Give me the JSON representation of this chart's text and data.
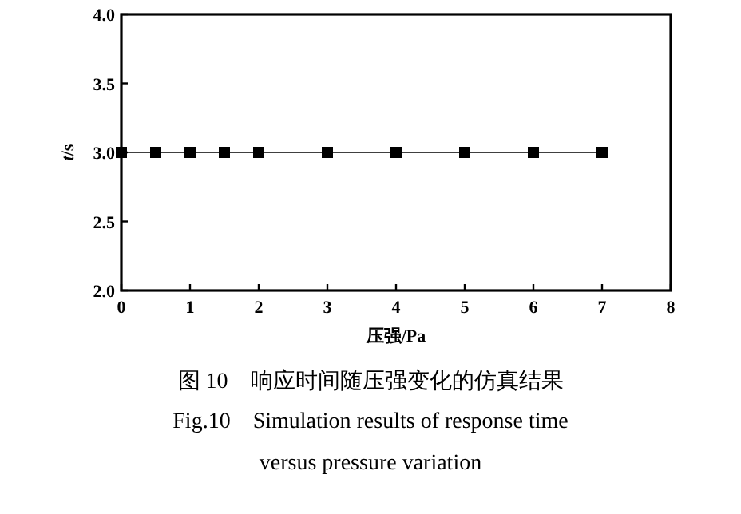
{
  "chart_data": {
    "type": "line",
    "xlabel": "压强/Pa",
    "ylabel": "*t*/s",
    "x": [
      0,
      0.5,
      1,
      1.5,
      2,
      3,
      4,
      5,
      6,
      7
    ],
    "series": [
      {
        "color": "#000000",
        "values": [
          3.0,
          3.0,
          3.0,
          3.0,
          3.0,
          3.0,
          3.0,
          3.0,
          3.0,
          3.0
        ]
      }
    ],
    "xlim": [
      0,
      8
    ],
    "xticks": [
      0,
      1,
      2,
      3,
      4,
      5,
      6,
      7,
      8
    ],
    "ylim": [
      2.0,
      4.0
    ],
    "yticks": [
      {
        "value": 2.0,
        "label": "2.0"
      },
      {
        "value": 2.5,
        "label": "2.5"
      },
      {
        "value": 3.0,
        "label": "3.0"
      },
      {
        "value": 3.5,
        "label": "3.5"
      },
      {
        "value": 4.0,
        "label": "4.0"
      }
    ],
    "marker": "square",
    "line_style": "solid",
    "grid": false,
    "annotations": [
      "图 10　响应时间随压强变化的仿真结果",
      "Fig.10　Simulation results of response time versus pressure variation"
    ]
  }
}
